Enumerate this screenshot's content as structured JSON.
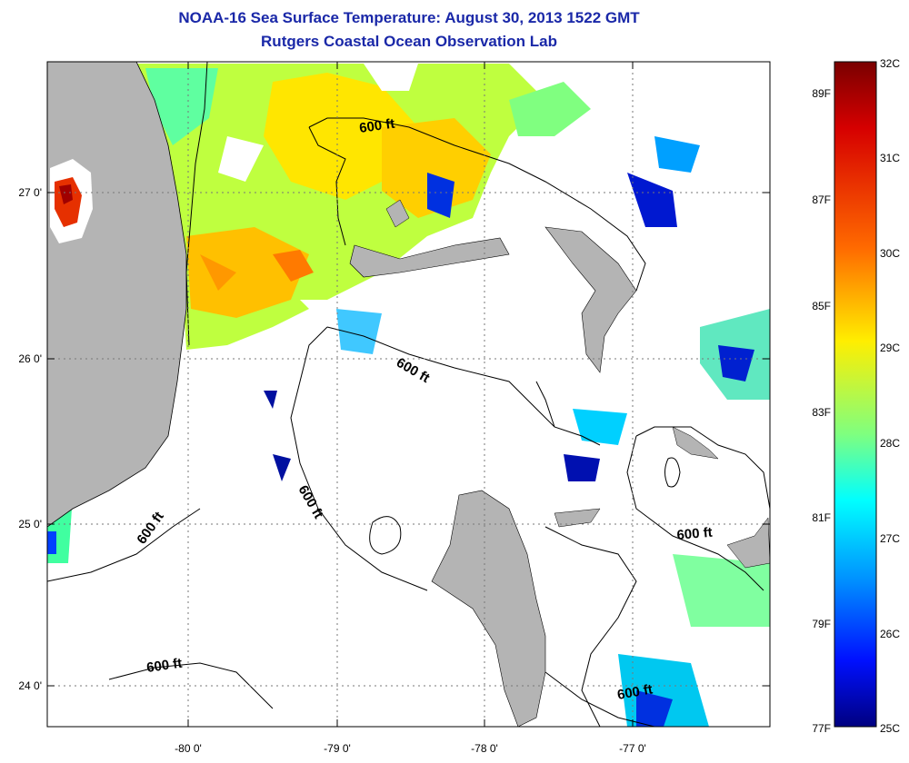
{
  "header": {
    "title": "NOAA-16 Sea Surface Temperature:  August 30, 2013 1522 GMT",
    "subtitle": "Rutgers Coastal Ocean Observation Lab"
  },
  "map": {
    "lat_ticks": [
      "27 0'",
      "26 0'",
      "25 0'",
      "24 0'"
    ],
    "lon_ticks": [
      "-80 0'",
      "-79 0'",
      "-78 0'",
      "-77 0'"
    ],
    "contour_labels": [
      "600 ft",
      "600 ft",
      "600 ft",
      "600 ft",
      "600 ft",
      "600 ft"
    ],
    "land_color": "#b4b4b4",
    "grid": true
  },
  "colorbar": {
    "celsius_labels": [
      "32C",
      "31C",
      "30C",
      "29C",
      "28C",
      "27C",
      "26C",
      "25C"
    ],
    "fahrenheit_labels": [
      "89F",
      "87F",
      "85F",
      "83F",
      "81F",
      "79F",
      "77F"
    ],
    "colors": [
      "#7a0000",
      "#d60000",
      "#ff5a00",
      "#ffd400",
      "#bfff3f",
      "#3fffbf",
      "#00a8ff",
      "#0028ff",
      "#000090"
    ]
  }
}
